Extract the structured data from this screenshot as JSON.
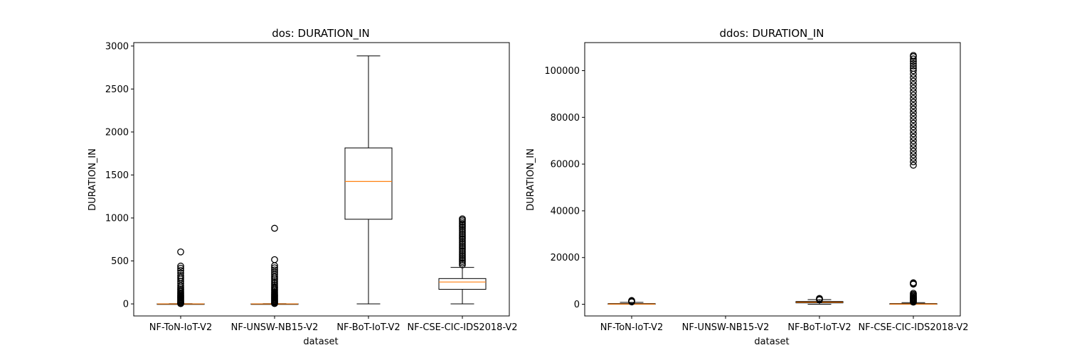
{
  "chart_data": [
    {
      "type": "box",
      "title": "dos: DURATION_IN",
      "xlabel": "dataset",
      "ylabel": "DURATION_IN",
      "categories": [
        "NF-ToN-IoT-V2",
        "NF-UNSW-NB15-V2",
        "NF-BoT-IoT-V2",
        "NF-CSE-CIC-IDS2018-V2"
      ],
      "ylim": [
        -140,
        3040
      ],
      "yticks": [
        0,
        500,
        1000,
        1500,
        2000,
        2500,
        3000
      ],
      "boxes": [
        {
          "whislo": 0,
          "q1": 0,
          "med": 0,
          "q3": 1,
          "whishi": 2,
          "fliers": [
            3,
            8,
            15,
            25,
            35,
            45,
            55,
            65,
            75,
            85,
            95,
            105,
            118,
            130,
            145,
            160,
            175,
            195,
            215,
            240,
            265,
            290,
            310,
            330,
            360,
            390,
            415,
            440,
            605
          ]
        },
        {
          "whislo": 0,
          "q1": 0,
          "med": 0,
          "q3": 1,
          "whishi": 2,
          "fliers": [
            4,
            10,
            20,
            30,
            40,
            50,
            60,
            70,
            80,
            90,
            100,
            112,
            125,
            140,
            155,
            170,
            185,
            200,
            220,
            240,
            260,
            280,
            300,
            320,
            345,
            370,
            395,
            420,
            445,
            515,
            880
          ]
        },
        {
          "whislo": 0,
          "q1": 985,
          "med": 1425,
          "q3": 1815,
          "whishi": 2885,
          "fliers": []
        },
        {
          "whislo": 0,
          "q1": 170,
          "med": 255,
          "q3": 295,
          "whishi": 425,
          "fliers": [
            455,
            475,
            495,
            515,
            535,
            555,
            575,
            595,
            615,
            635,
            655,
            675,
            695,
            715,
            735,
            755,
            775,
            795,
            815,
            835,
            855,
            875,
            895,
            915,
            935,
            955,
            975,
            990
          ]
        }
      ]
    },
    {
      "type": "box",
      "title": "ddos: DURATION_IN",
      "xlabel": "dataset",
      "ylabel": "DURATION_IN",
      "categories": [
        "NF-ToN-IoT-V2",
        "NF-UNSW-NB15-V2",
        "NF-BoT-IoT-V2",
        "NF-CSE-CIC-IDS2018-V2"
      ],
      "ylim": [
        -5000,
        112000
      ],
      "yticks": [
        0,
        20000,
        40000,
        60000,
        80000,
        100000
      ],
      "boxes": [
        {
          "whislo": 0,
          "q1": 0,
          "med": 100,
          "q3": 300,
          "whishi": 800,
          "fliers": [
            1000,
            1200,
            1400,
            1600
          ]
        },
        null,
        {
          "whislo": 0,
          "q1": 600,
          "med": 900,
          "q3": 1200,
          "whishi": 2000,
          "fliers": [
            1900,
            2100,
            2300,
            2500
          ]
        },
        {
          "whislo": 0,
          "q1": 0,
          "med": 100,
          "q3": 300,
          "whishi": 700,
          "fliers": [
            900,
            1200,
            1500,
            1800,
            2100,
            2400,
            2700,
            3000,
            3400,
            3800,
            4200,
            4700,
            8600,
            8900,
            9200,
            59500,
            61000,
            62500,
            64000,
            65500,
            67000,
            68500,
            70000,
            71500,
            73000,
            74500,
            76000,
            77500,
            79000,
            80500,
            82000,
            83500,
            85000,
            86500,
            88000,
            89500,
            91000,
            92500,
            94000,
            95500,
            97000,
            98500,
            100000,
            101000,
            102000,
            103000,
            104000,
            105000,
            106000,
            106500
          ]
        }
      ]
    }
  ]
}
